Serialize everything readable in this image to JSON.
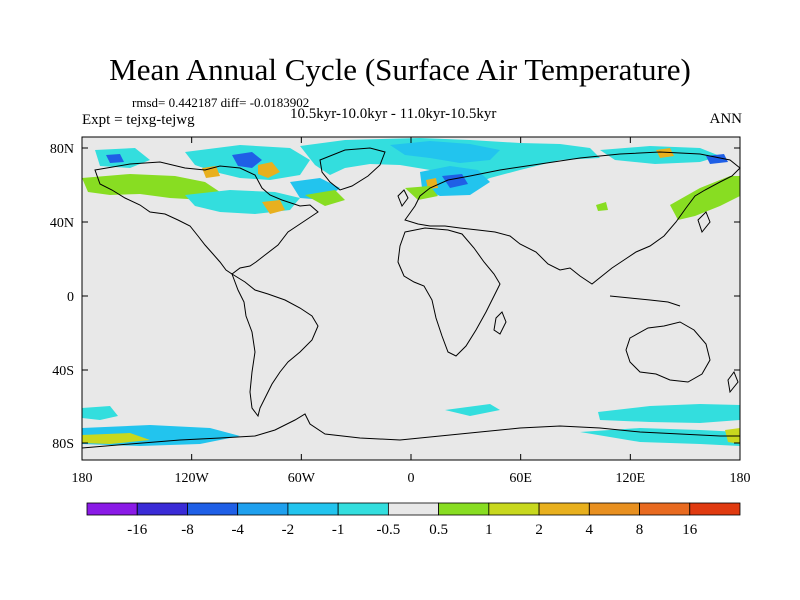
{
  "plot": {
    "title": "Mean Annual Cycle (Surface Air Temperature)",
    "stats": "rmsd= 0.442187 diff= -0.0183902",
    "expt": "Expt = tejxg-tejwg",
    "period": "10.5kyr-10.0kyr - 11.0kyr-10.5kyr",
    "season": "ANN",
    "background_color": "#e8e8e8",
    "coastline_color": "#000000"
  },
  "axes": {
    "x_ticks": [
      "180",
      "120W",
      "60W",
      "0",
      "60E",
      "120E",
      "180"
    ],
    "y_ticks": [
      "80N",
      "40N",
      "0",
      "40S",
      "80S"
    ]
  },
  "colorbar": {
    "labels": [
      "-16",
      "-8",
      "-4",
      "-2",
      "-1",
      "-0.5",
      "0.5",
      "1",
      "2",
      "4",
      "8",
      "16"
    ],
    "colors": [
      "#8a1ae6",
      "#3a2bd6",
      "#1f5fe6",
      "#1fa0ee",
      "#22c4ee",
      "#33dede",
      "#e8e8e8",
      "#88dd22",
      "#c8d81e",
      "#e8b01e",
      "#e89020",
      "#e86a20",
      "#e03a10"
    ]
  },
  "anomaly_colors": {
    "cool_light": "#33dede",
    "cool": "#22c4ee",
    "cool_strong": "#1fa0ee",
    "cool_deep": "#1f5fe6",
    "warm_light": "#88dd22",
    "warm": "#c8d81e",
    "warm_strong": "#e8b01e"
  }
}
